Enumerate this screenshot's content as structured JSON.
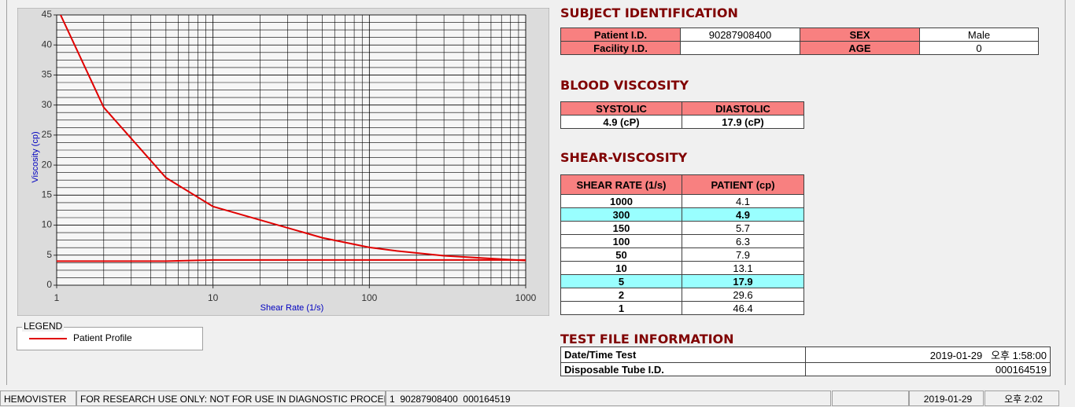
{
  "chart_data": {
    "type": "line",
    "xlabel": "Shear Rate (1/s)",
    "ylabel": "Viscosity (cp)",
    "x": [
      1,
      2,
      5,
      10,
      50,
      100,
      150,
      300,
      1000
    ],
    "xscale": "log",
    "xlim": [
      1,
      1000
    ],
    "xticks": [
      1,
      10,
      100,
      1000
    ],
    "ylim": [
      0,
      45
    ],
    "yticks": [
      0,
      5,
      10,
      15,
      20,
      25,
      30,
      35,
      40,
      45
    ],
    "grid": true,
    "series": [
      {
        "name": "Patient Profile",
        "color": "#e00000",
        "values": [
          46.4,
          29.6,
          17.9,
          13.1,
          7.9,
          6.3,
          5.7,
          4.9,
          4.1
        ]
      },
      {
        "color": "#e00000",
        "values": [
          4,
          4,
          4,
          4.2,
          4.2,
          4.2,
          4.2,
          4.2,
          4.2
        ]
      }
    ]
  },
  "legend": {
    "title": "LEGEND"
  },
  "subject_identification": {
    "title": "SUBJECT IDENTIFICATION",
    "fields": [
      {
        "label": "Patient I.D.",
        "value": "90287908400"
      },
      {
        "label": "SEX",
        "value": "Male"
      },
      {
        "label": "Facility I.D."
      },
      {
        "label": "AGE",
        "value": 0
      }
    ]
  },
  "blood_viscosity": {
    "title": "BLOOD VISCOSITY",
    "headers": [
      "SYSTOLIC",
      "DIASTOLIC"
    ],
    "values": [
      "4.9 (cP)",
      "17.9 (cP)"
    ]
  },
  "shear_viscosity": {
    "title": "SHEAR-VISCOSITY",
    "headers": [
      "SHEAR RATE (1/s)",
      "PATIENT (cp)"
    ]
  },
  "test_file_information": {
    "title": "TEST FILE INFORMATION",
    "rows": [
      {
        "label": "Date/Time Test",
        "value": "2019-01-29   오후 1:58:00"
      },
      {
        "label": "Disposable Tube I.D.",
        "value": "000164519"
      }
    ]
  },
  "status_bar": [
    "HEMOVISTER",
    "FOR RESEARCH USE ONLY: NOT FOR USE IN DIAGNOSTIC PROCEDURES",
    "1  90287908400  000164519",
    "2019-01-29",
    "오후 2:02"
  ]
}
